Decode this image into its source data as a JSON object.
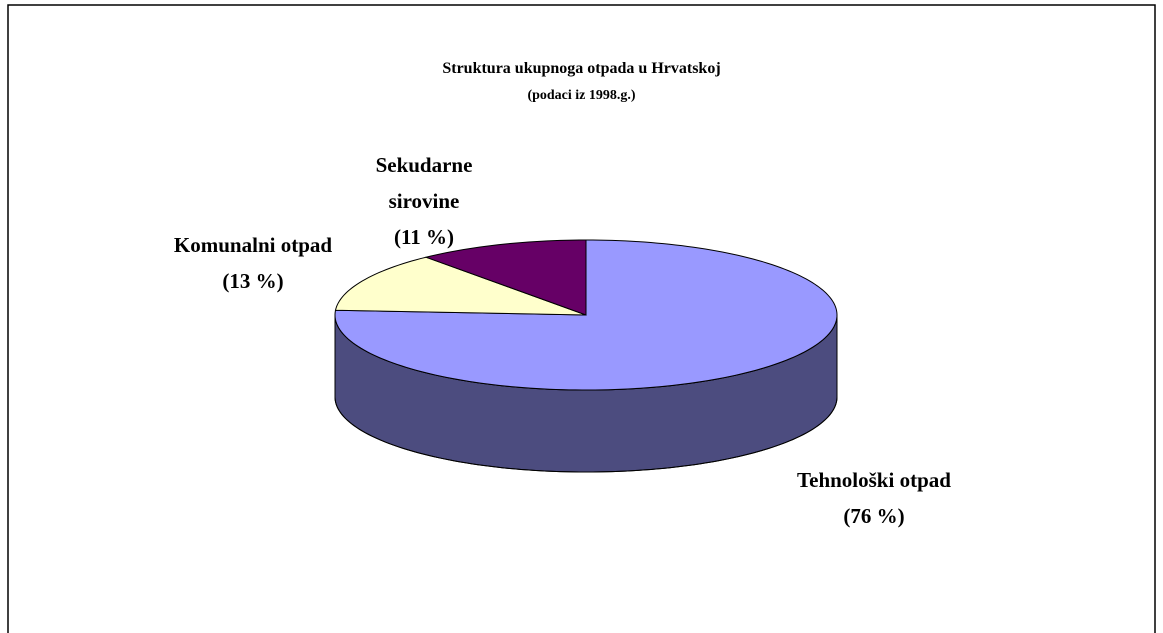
{
  "chart_data": {
    "type": "pie",
    "three_d": true,
    "title": "Struktura ukupnoga otpada u Hrvatskoj",
    "subtitle": "(podaci iz 1998.g.)",
    "categories": [
      "Tehnološki otpad",
      "Komunalni otpad",
      "Sekudarne sirovine"
    ],
    "values": [
      76,
      13,
      11
    ],
    "value_labels": [
      "(76 %)",
      "(13 %)",
      "(11 %)"
    ],
    "colors": [
      "#9999ff",
      "#ffffcc",
      "#660066"
    ]
  }
}
